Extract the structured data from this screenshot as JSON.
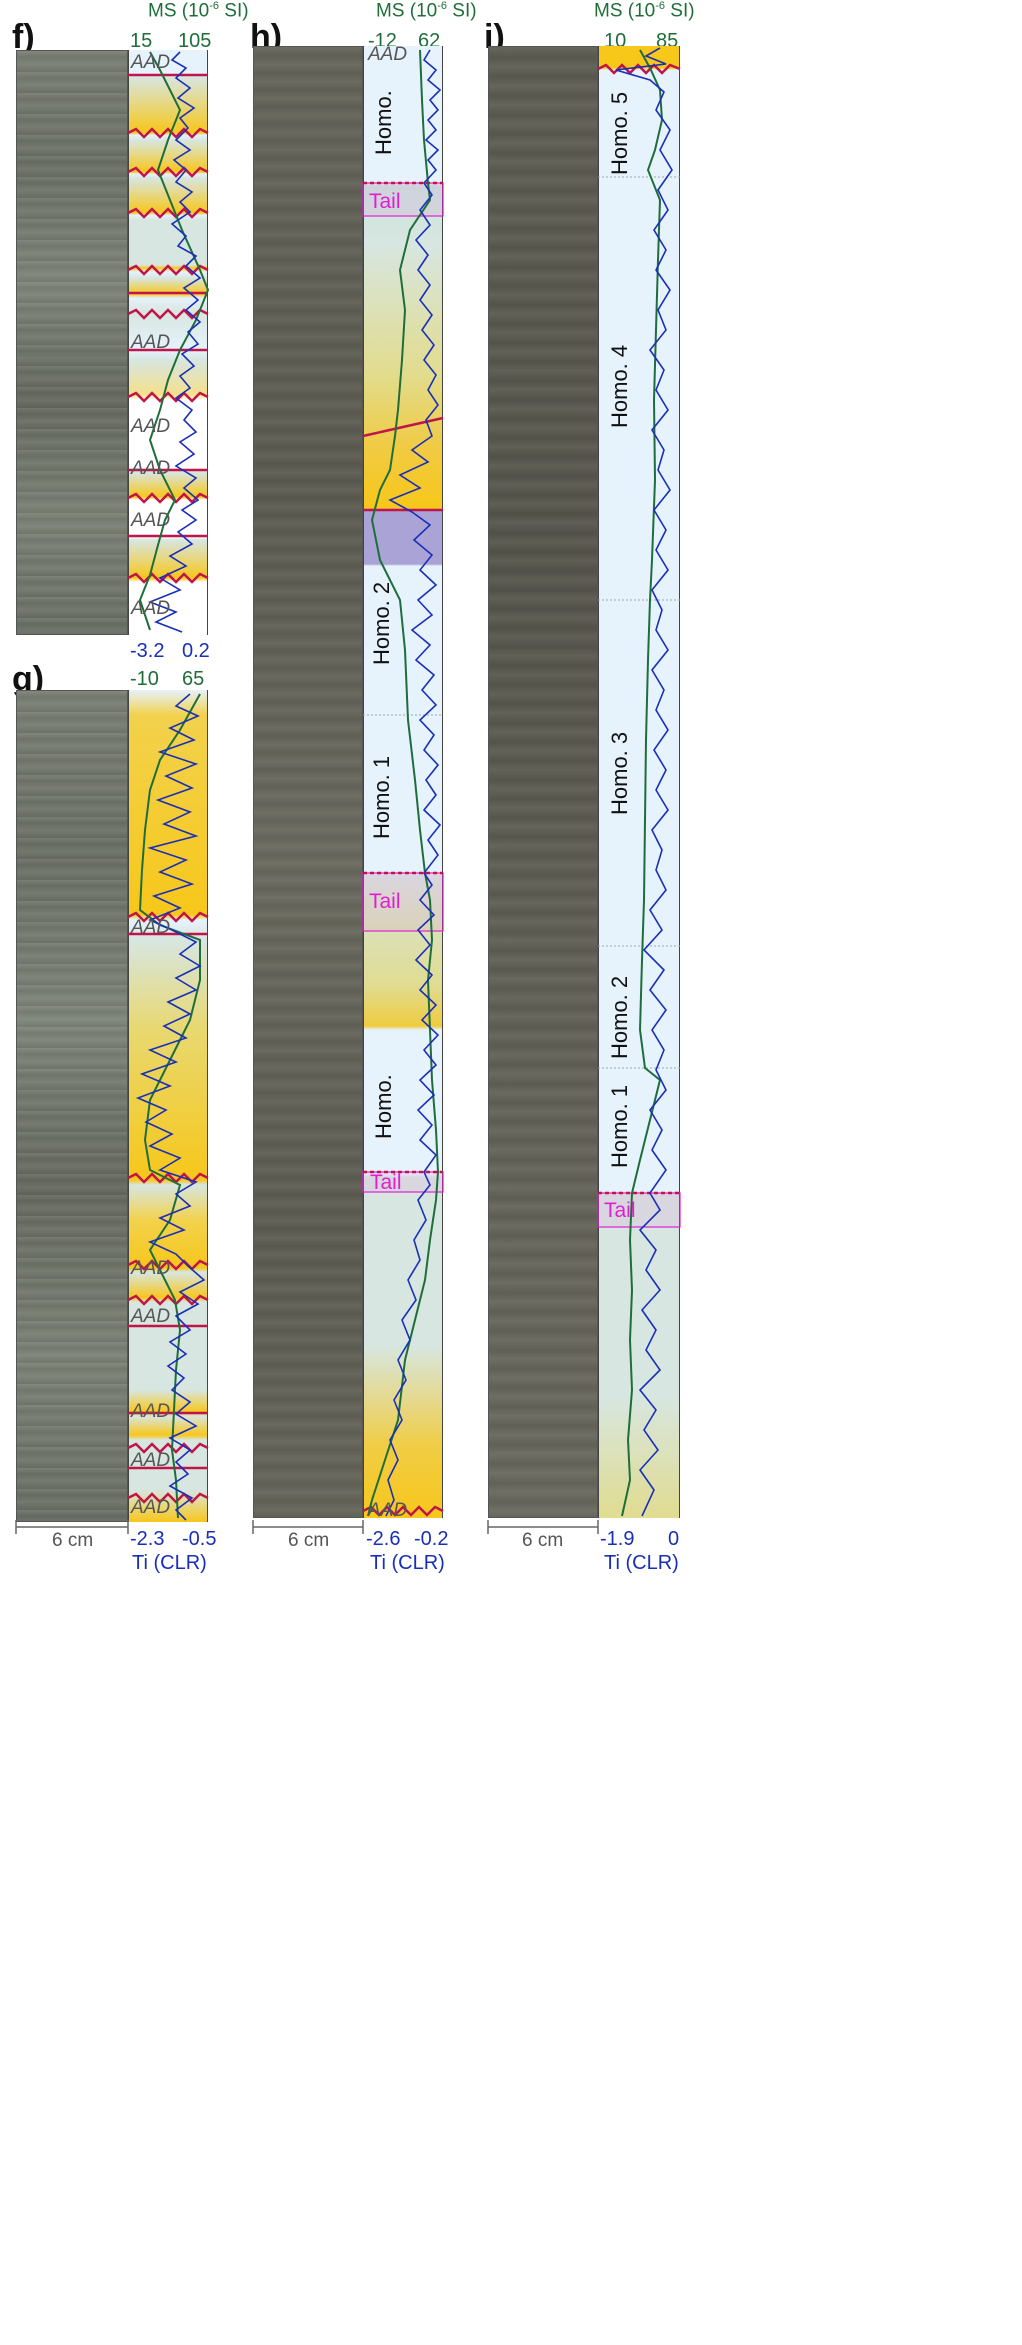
{
  "panels": {
    "f": {
      "letter": "f)",
      "ms_title": "MS (10",
      "ms_exp": "-6",
      "ms_unit": " SI)",
      "ms_min": "15",
      "ms_max": "105",
      "ti_min": "-3.2",
      "ti_max": "0.2",
      "aad_labels": [
        "AAD",
        "AAD",
        "AAD",
        "AAD",
        "AAD",
        "AAD"
      ]
    },
    "g": {
      "letter": "g)",
      "ms_min": "-10",
      "ms_max": "65",
      "ti_min": "-2.3",
      "ti_max": "-0.5",
      "scale": "6 cm",
      "ti_title": "Ti (CLR)",
      "aad_labels": [
        "AAD",
        "AAD",
        "AAD",
        "AAD",
        "AAD",
        "AAD"
      ]
    },
    "h": {
      "letter": "h)",
      "ms_title": "MS (10",
      "ms_exp": "-6",
      "ms_unit": " SI)",
      "ms_min": "-12",
      "ms_max": "62",
      "ti_min": "-2.6",
      "ti_max": "-0.2",
      "scale": "6 cm",
      "ti_title": "Ti (CLR)",
      "units": [
        "Homo.",
        "Tail",
        "Homo. 2",
        "Homo. 1",
        "Tail",
        "Homo.",
        "Tail"
      ],
      "aad_labels": [
        "AAD",
        "AAD"
      ]
    },
    "i": {
      "letter": "i)",
      "ms_title": "MS (10",
      "ms_exp": "-6",
      "ms_unit": " SI)",
      "ms_min": "10",
      "ms_max": "85",
      "ti_min": "-1.9",
      "ti_max": "0",
      "scale": "6 cm",
      "ti_title": "Ti (CLR)",
      "units": [
        "Homo. 5",
        "Homo. 4",
        "Homo. 3",
        "Homo. 2",
        "Homo. 1",
        "Tail"
      ]
    }
  },
  "colors": {
    "ms_curve": "#1f6e3a",
    "ti_curve": "#1a2fb8",
    "boundary": "#c0144a",
    "tail": "#e11fd0",
    "homo_bg": "#e6f2fc",
    "turbidite_top": "#d7e6e0",
    "turbidite_base": "#f7c71a",
    "purple_band": "#a9a3d6"
  }
}
